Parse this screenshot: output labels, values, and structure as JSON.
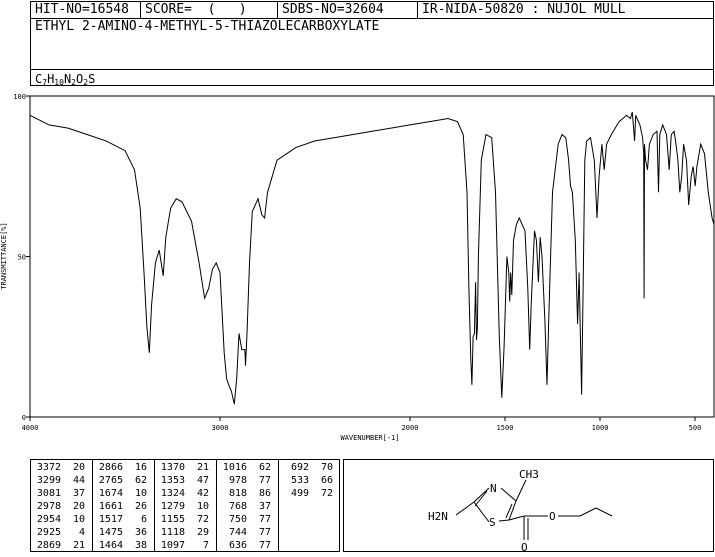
{
  "header": {
    "hit_no": "HIT-NO=16548",
    "score": "SCORE=  (   )",
    "sdbs_no": "SDBS-NO=32604",
    "ir_id": "IR-NIDA-50820 : NUJOL MULL",
    "compound": "ETHYL 2-AMINO-4-METHYL-5-THIAZOLECARBOXYLATE",
    "formula_parts": [
      {
        "t": "C",
        "sub": false
      },
      {
        "t": "7",
        "sub": true
      },
      {
        "t": "H",
        "sub": false
      },
      {
        "t": "10",
        "sub": true
      },
      {
        "t": "N",
        "sub": false
      },
      {
        "t": "2",
        "sub": true
      },
      {
        "t": "O",
        "sub": false
      },
      {
        "t": "2",
        "sub": true
      },
      {
        "t": "S",
        "sub": false
      }
    ]
  },
  "chart_data": {
    "type": "line",
    "xlabel": "WAVENUMBER[-1]",
    "ylabel": "TRANSMITTANCE[%]",
    "xlim": [
      4000,
      400
    ],
    "ylim": [
      0,
      100
    ],
    "x_ticks": [
      4000,
      3000,
      2000,
      1500,
      1000,
      500
    ],
    "y_ticks": [
      0,
      50,
      100
    ],
    "series": [
      {
        "points": [
          [
            4000,
            94
          ],
          [
            3900,
            91
          ],
          [
            3800,
            90
          ],
          [
            3700,
            88
          ],
          [
            3600,
            86
          ],
          [
            3500,
            83
          ],
          [
            3450,
            77
          ],
          [
            3420,
            65
          ],
          [
            3400,
            45
          ],
          [
            3385,
            28
          ],
          [
            3372,
            20
          ],
          [
            3360,
            35
          ],
          [
            3340,
            48
          ],
          [
            3320,
            52
          ],
          [
            3299,
            44
          ],
          [
            3285,
            56
          ],
          [
            3260,
            65
          ],
          [
            3230,
            68
          ],
          [
            3200,
            67
          ],
          [
            3150,
            61
          ],
          [
            3110,
            48
          ],
          [
            3081,
            37
          ],
          [
            3060,
            40
          ],
          [
            3040,
            46
          ],
          [
            3020,
            48
          ],
          [
            3000,
            45
          ],
          [
            2978,
            20
          ],
          [
            2965,
            12
          ],
          [
            2954,
            10
          ],
          [
            2940,
            8
          ],
          [
            2925,
            4
          ],
          [
            2912,
            12
          ],
          [
            2900,
            26
          ],
          [
            2885,
            21
          ],
          [
            2869,
            21
          ],
          [
            2866,
            16
          ],
          [
            2858,
            26
          ],
          [
            2845,
            48
          ],
          [
            2830,
            64
          ],
          [
            2800,
            68
          ],
          [
            2780,
            63
          ],
          [
            2765,
            62
          ],
          [
            2750,
            70
          ],
          [
            2700,
            80
          ],
          [
            2600,
            84
          ],
          [
            2500,
            86
          ],
          [
            2400,
            87
          ],
          [
            2300,
            88
          ],
          [
            2200,
            89
          ],
          [
            2100,
            90
          ],
          [
            2000,
            91
          ],
          [
            1900,
            92
          ],
          [
            1800,
            93
          ],
          [
            1750,
            92
          ],
          [
            1720,
            88
          ],
          [
            1700,
            70
          ],
          [
            1690,
            40
          ],
          [
            1680,
            18
          ],
          [
            1674,
            10
          ],
          [
            1668,
            25
          ],
          [
            1661,
            26
          ],
          [
            1655,
            42
          ],
          [
            1650,
            24
          ],
          [
            1645,
            28
          ],
          [
            1640,
            50
          ],
          [
            1625,
            80
          ],
          [
            1600,
            88
          ],
          [
            1570,
            87
          ],
          [
            1550,
            70
          ],
          [
            1530,
            25
          ],
          [
            1517,
            6
          ],
          [
            1505,
            22
          ],
          [
            1490,
            50
          ],
          [
            1480,
            45
          ],
          [
            1475,
            36
          ],
          [
            1470,
            45
          ],
          [
            1464,
            38
          ],
          [
            1455,
            55
          ],
          [
            1440,
            60
          ],
          [
            1425,
            62
          ],
          [
            1410,
            60
          ],
          [
            1395,
            58
          ],
          [
            1380,
            40
          ],
          [
            1370,
            21
          ],
          [
            1362,
            35
          ],
          [
            1353,
            47
          ],
          [
            1345,
            58
          ],
          [
            1335,
            55
          ],
          [
            1324,
            42
          ],
          [
            1315,
            56
          ],
          [
            1305,
            50
          ],
          [
            1290,
            30
          ],
          [
            1279,
            10
          ],
          [
            1270,
            30
          ],
          [
            1250,
            70
          ],
          [
            1220,
            85
          ],
          [
            1200,
            88
          ],
          [
            1180,
            87
          ],
          [
            1165,
            80
          ],
          [
            1155,
            72
          ],
          [
            1145,
            70
          ],
          [
            1130,
            55
          ],
          [
            1118,
            29
          ],
          [
            1110,
            45
          ],
          [
            1097,
            7
          ],
          [
            1090,
            35
          ],
          [
            1080,
            80
          ],
          [
            1070,
            86
          ],
          [
            1050,
            87
          ],
          [
            1030,
            80
          ],
          [
            1016,
            62
          ],
          [
            1005,
            75
          ],
          [
            990,
            85
          ],
          [
            978,
            77
          ],
          [
            965,
            85
          ],
          [
            940,
            88
          ],
          [
            900,
            92
          ],
          [
            860,
            94
          ],
          [
            840,
            93
          ],
          [
            830,
            95
          ],
          [
            818,
            86
          ],
          [
            812,
            94
          ],
          [
            790,
            91
          ],
          [
            776,
            87
          ],
          [
            770,
            82
          ],
          [
            768,
            37
          ],
          [
            766,
            85
          ],
          [
            760,
            80
          ],
          [
            750,
            77
          ],
          [
            740,
            85
          ],
          [
            720,
            88
          ],
          [
            700,
            89
          ],
          [
            692,
            70
          ],
          [
            685,
            88
          ],
          [
            670,
            91
          ],
          [
            650,
            88
          ],
          [
            636,
            77
          ],
          [
            625,
            88
          ],
          [
            610,
            89
          ],
          [
            600,
            85
          ],
          [
            590,
            80
          ],
          [
            580,
            70
          ],
          [
            570,
            75
          ],
          [
            560,
            85
          ],
          [
            545,
            80
          ],
          [
            533,
            66
          ],
          [
            520,
            75
          ],
          [
            510,
            78
          ],
          [
            499,
            72
          ],
          [
            490,
            78
          ],
          [
            470,
            85
          ],
          [
            450,
            82
          ],
          [
            430,
            70
          ],
          [
            410,
            62
          ],
          [
            400,
            60
          ]
        ]
      }
    ]
  },
  "peak_table": [
    [
      [
        3372,
        20
      ],
      [
        3299,
        44
      ],
      [
        3081,
        37
      ],
      [
        2978,
        20
      ],
      [
        2954,
        10
      ],
      [
        2925,
        4
      ],
      [
        2869,
        21
      ]
    ],
    [
      [
        2866,
        16
      ],
      [
        2765,
        62
      ],
      [
        1674,
        10
      ],
      [
        1661,
        26
      ],
      [
        1517,
        6
      ],
      [
        1475,
        36
      ],
      [
        1464,
        38
      ]
    ],
    [
      [
        1370,
        21
      ],
      [
        1353,
        47
      ],
      [
        1324,
        42
      ],
      [
        1279,
        10
      ],
      [
        1155,
        72
      ],
      [
        1118,
        29
      ],
      [
        1097,
        7
      ]
    ],
    [
      [
        1016,
        62
      ],
      [
        978,
        77
      ],
      [
        818,
        86
      ],
      [
        768,
        37
      ],
      [
        750,
        77
      ],
      [
        744,
        77
      ],
      [
        636,
        77
      ]
    ],
    [
      [
        692,
        70
      ],
      [
        533,
        66
      ],
      [
        499,
        72
      ]
    ]
  ],
  "structure": {
    "methyl": "CH3",
    "amino": "H2N",
    "ring_n": "N",
    "ring_s": "S",
    "carbonyl_o": "O",
    "ester_o": "O"
  }
}
